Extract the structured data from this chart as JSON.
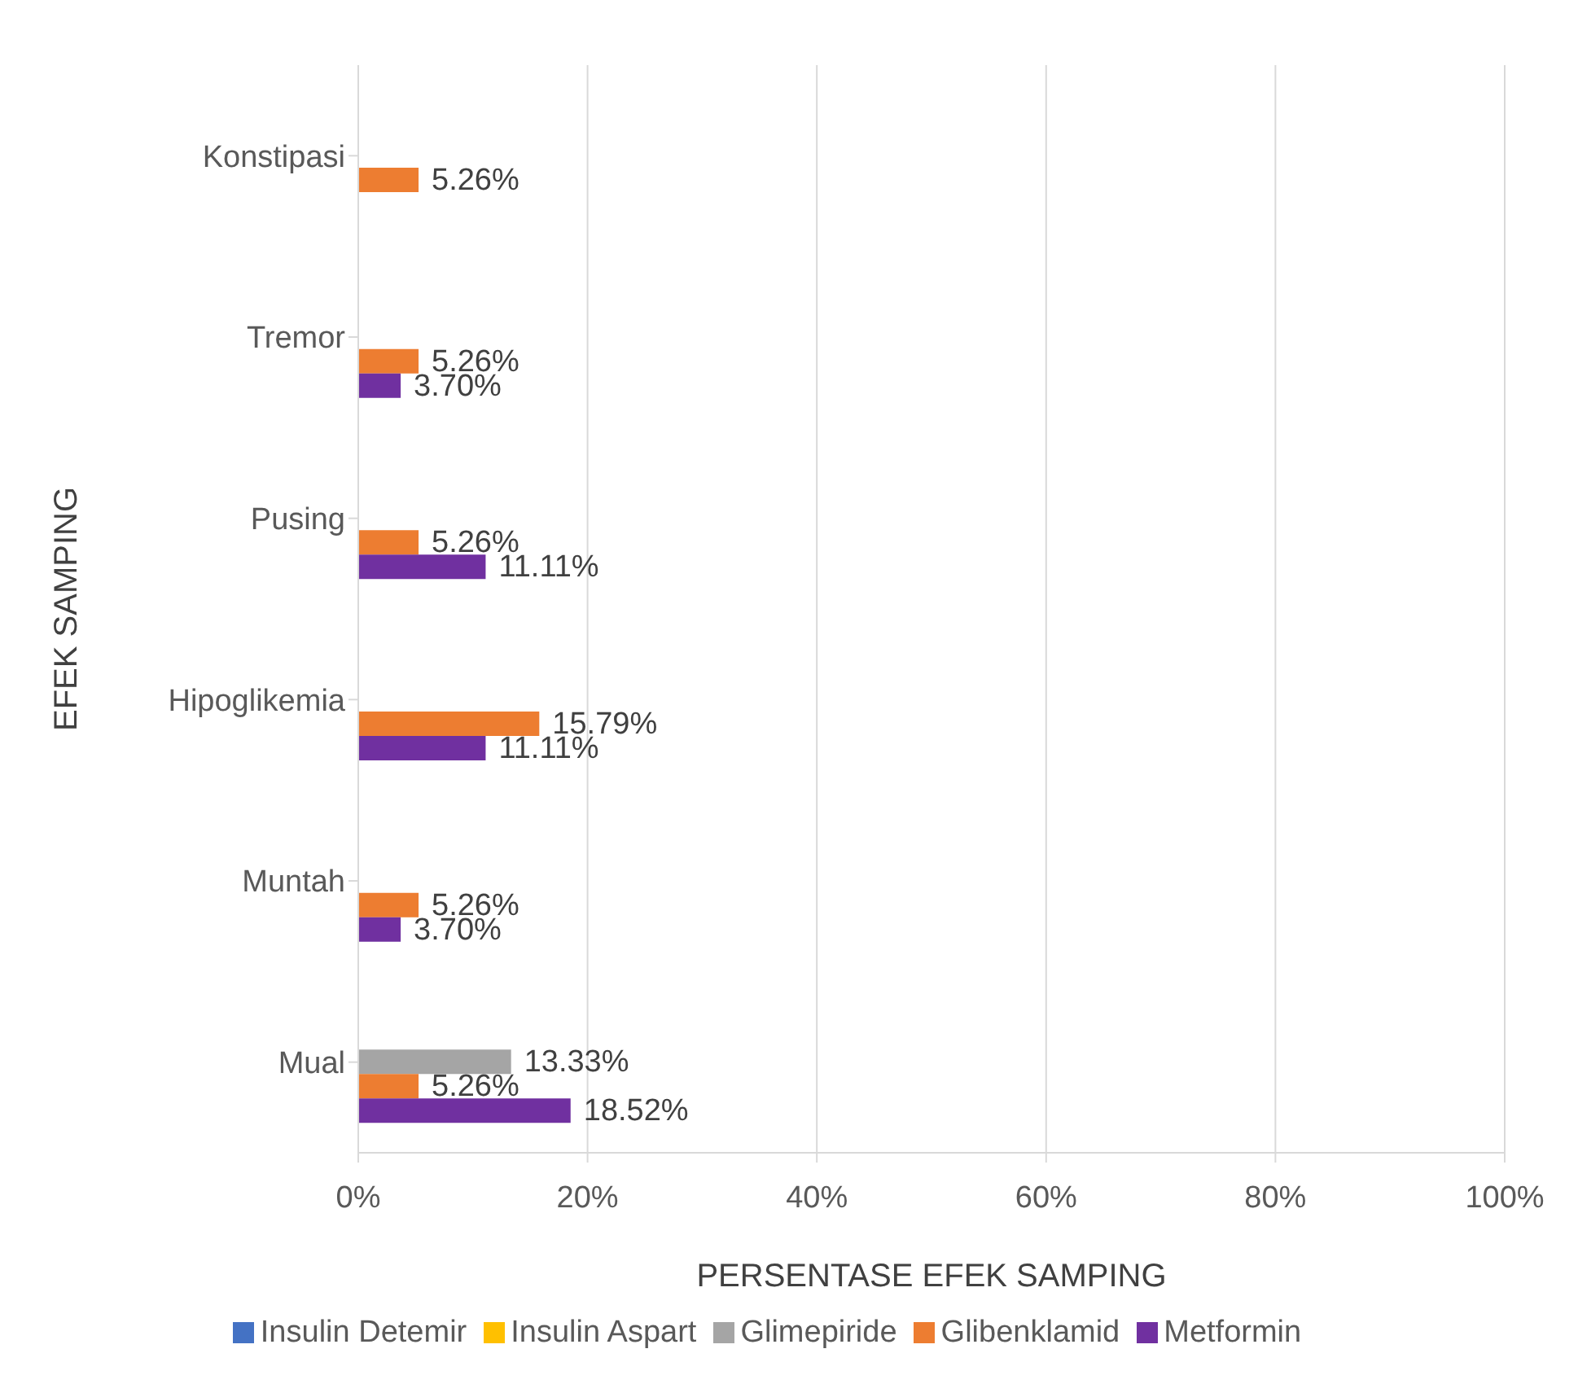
{
  "chart_data": {
    "type": "bar",
    "orientation": "horizontal",
    "xlabel": "PERSENTASE EFEK SAMPING",
    "ylabel": "EFEK SAMPING",
    "categories": [
      "Konstipasi",
      "Tremor",
      "Pusing",
      "Hipoglikemia",
      "Muntah",
      "Mual"
    ],
    "series": [
      {
        "name": "Insulin Detemir",
        "color": "#4472c4",
        "values": [
          null,
          null,
          null,
          null,
          null,
          null
        ]
      },
      {
        "name": "Insulin Aspart",
        "color": "#ffc000",
        "values": [
          null,
          null,
          null,
          null,
          null,
          null
        ]
      },
      {
        "name": "Glimepiride",
        "color": "#a5a5a5",
        "values": [
          null,
          null,
          null,
          null,
          null,
          13.33
        ],
        "value_labels": [
          null,
          null,
          null,
          null,
          null,
          "13.33%"
        ]
      },
      {
        "name": "Glibenklamid",
        "color": "#ed7d31",
        "values": [
          5.26,
          5.26,
          5.26,
          15.79,
          5.26,
          5.26
        ],
        "value_labels": [
          "5.26%",
          "5.26%",
          "5.26%",
          "15.79%",
          "5.26%",
          "5.26%"
        ]
      },
      {
        "name": "Metformin",
        "color": "#7030a0",
        "values": [
          null,
          3.7,
          11.11,
          11.11,
          3.7,
          18.52
        ],
        "value_labels": [
          null,
          "3.70%",
          "11.11%",
          "11.11%",
          "3.70%",
          "18.52%"
        ]
      }
    ],
    "xlim": [
      0,
      100
    ],
    "xticks": [
      {
        "value": 0,
        "label": "0%"
      },
      {
        "value": 20,
        "label": "20%"
      },
      {
        "value": 40,
        "label": "40%"
      },
      {
        "value": 60,
        "label": "60%"
      },
      {
        "value": 80,
        "label": "80%"
      },
      {
        "value": 100,
        "label": "100%"
      }
    ],
    "grid": "x",
    "legend": "bottom"
  }
}
